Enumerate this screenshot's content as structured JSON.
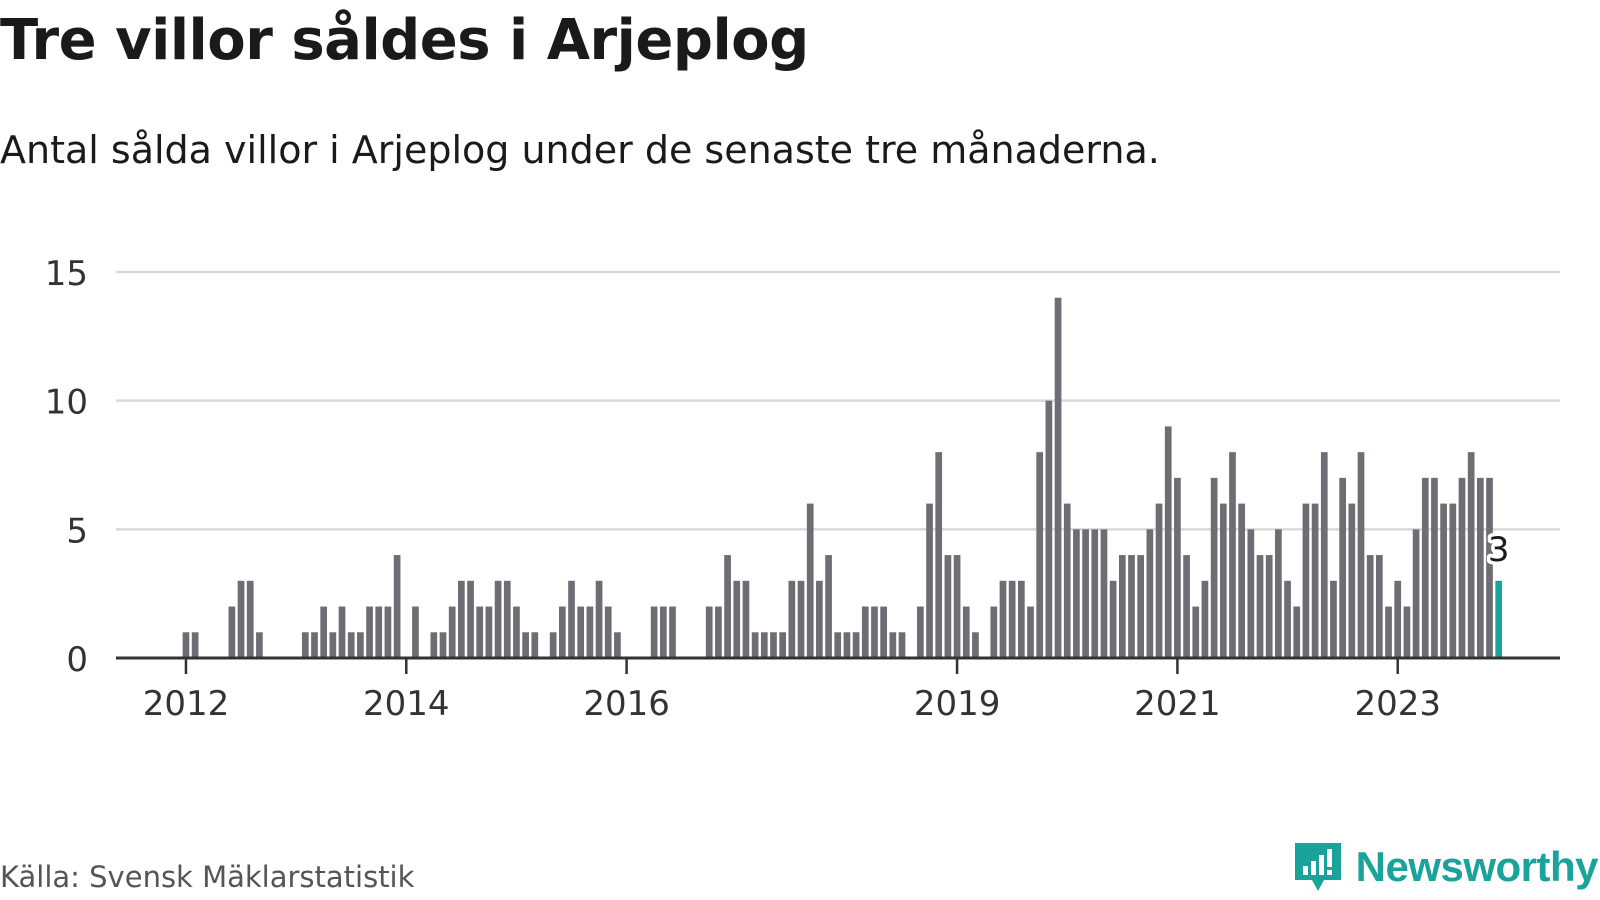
{
  "title": "Tre villor såldes i Arjeplog",
  "subtitle": "Antal sålda villor i Arjeplog under de senaste tre månaderna.",
  "source": "Källa: Svensk Mäklarstatistik",
  "brand": "Newsworthy",
  "colors": {
    "bar": "#6e6d73",
    "highlight": "#1aa39a",
    "grid": "#d9d9d9",
    "axis": "#333333",
    "text": "#1a1a1a"
  },
  "chart_data": {
    "type": "bar",
    "title": "Tre villor såldes i Arjeplog",
    "xlabel": "",
    "ylabel": "",
    "ylim": [
      0,
      15
    ],
    "y_ticks": [
      0,
      5,
      10,
      15
    ],
    "x_tick_labels": [
      {
        "index": 7,
        "label": "2012"
      },
      {
        "index": 31,
        "label": "2014"
      },
      {
        "index": 55,
        "label": "2016"
      },
      {
        "index": 91,
        "label": "2019"
      },
      {
        "index": 115,
        "label": "2021"
      },
      {
        "index": 139,
        "label": "2023"
      }
    ],
    "values": [
      0,
      0,
      0,
      0,
      0,
      0,
      0,
      1,
      1,
      0,
      0,
      0,
      2,
      3,
      3,
      1,
      0,
      0,
      0,
      0,
      1,
      1,
      2,
      1,
      2,
      1,
      1,
      2,
      2,
      2,
      4,
      0,
      2,
      0,
      1,
      1,
      2,
      3,
      3,
      2,
      2,
      3,
      3,
      2,
      1,
      1,
      0,
      1,
      2,
      3,
      2,
      2,
      3,
      2,
      1,
      0,
      0,
      0,
      2,
      2,
      2,
      0,
      0,
      0,
      2,
      2,
      4,
      3,
      3,
      1,
      1,
      1,
      1,
      3,
      3,
      6,
      3,
      4,
      1,
      1,
      1,
      2,
      2,
      2,
      1,
      1,
      0,
      2,
      6,
      8,
      4,
      4,
      2,
      1,
      0,
      2,
      3,
      3,
      3,
      2,
      8,
      10,
      14,
      6,
      5,
      5,
      5,
      5,
      3,
      4,
      4,
      4,
      5,
      6,
      9,
      7,
      4,
      2,
      3,
      7,
      6,
      8,
      6,
      5,
      4,
      4,
      5,
      3,
      2,
      6,
      6,
      8,
      3,
      7,
      6,
      8,
      4,
      4,
      2,
      3,
      2,
      5,
      7,
      7,
      6,
      6,
      7,
      8,
      7,
      7,
      3
    ],
    "highlight_index": 150,
    "highlight_label": "3"
  }
}
